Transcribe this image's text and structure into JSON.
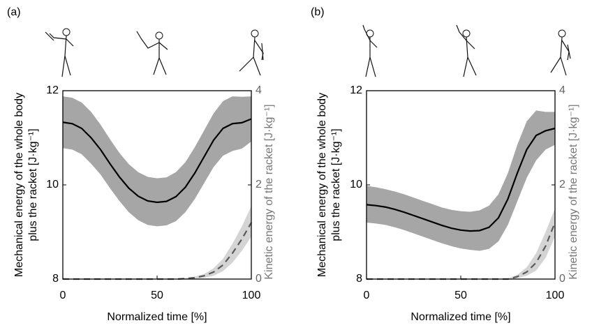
{
  "chart_data": [
    {
      "type": "line",
      "panel_label": "(a)",
      "xlabel": "Normalized time [%]",
      "ylabel": [
        "Mechanical energy of the whole body",
        "plus the racket [J·kg⁻¹]"
      ],
      "y2label": "Kinetic energy of the racket [J·kg⁻¹]",
      "x": [
        0,
        5,
        10,
        15,
        20,
        25,
        30,
        35,
        40,
        45,
        50,
        55,
        60,
        65,
        70,
        75,
        80,
        85,
        90,
        95,
        100
      ],
      "xlim": [
        0,
        100
      ],
      "xticks": [
        0,
        50,
        100
      ],
      "ylim": [
        8,
        12
      ],
      "yticks": [
        8,
        10,
        12
      ],
      "y2lim": [
        0,
        4
      ],
      "y2ticks": [
        0,
        2,
        4
      ],
      "series": [
        {
          "color": "#000000",
          "band_color": "#a6a6a6",
          "line_style": "solid",
          "values": [
            11.33,
            11.3,
            11.2,
            11.0,
            10.75,
            10.45,
            10.17,
            9.93,
            9.76,
            9.66,
            9.63,
            9.65,
            9.75,
            9.95,
            10.25,
            10.6,
            10.95,
            11.2,
            11.3,
            11.32,
            11.4
          ],
          "upper": [
            11.88,
            11.85,
            11.75,
            11.55,
            11.28,
            10.97,
            10.68,
            10.44,
            10.27,
            10.17,
            10.14,
            10.16,
            10.27,
            10.48,
            10.8,
            11.16,
            11.52,
            11.78,
            11.88,
            11.87,
            11.88
          ],
          "lower": [
            10.78,
            10.75,
            10.65,
            10.45,
            10.22,
            9.93,
            9.66,
            9.42,
            9.25,
            9.15,
            9.12,
            9.14,
            9.23,
            9.42,
            9.7,
            10.04,
            10.38,
            10.62,
            10.72,
            10.77,
            10.92
          ]
        },
        {
          "color": "#5a5a5a",
          "band_color": "#d4d4d4",
          "line_style": "dashed",
          "axis": "y2",
          "values": [
            0,
            0,
            0,
            0,
            0,
            0,
            0,
            0,
            0,
            0,
            0,
            0,
            0,
            0.01,
            0.03,
            0.07,
            0.15,
            0.3,
            0.55,
            0.85,
            1.2
          ],
          "upper": [
            0,
            0,
            0,
            0,
            0,
            0,
            0,
            0,
            0,
            0,
            0,
            0,
            0,
            0.02,
            0.05,
            0.11,
            0.23,
            0.43,
            0.75,
            1.12,
            1.55
          ],
          "lower": [
            0,
            0,
            0,
            0,
            0,
            0,
            0,
            0,
            0,
            0,
            0,
            0,
            0,
            0,
            0.01,
            0.03,
            0.07,
            0.17,
            0.35,
            0.6,
            0.9
          ]
        }
      ]
    },
    {
      "type": "line",
      "panel_label": "(b)",
      "xlabel": "Normalized time [%]",
      "ylabel": [
        "Mechanical energy of the whole body",
        "plus the racket [J·kg⁻¹]"
      ],
      "y2label": "Kinetic energy of the racket [J·kg⁻¹]",
      "x": [
        0,
        5,
        10,
        15,
        20,
        25,
        30,
        35,
        40,
        45,
        50,
        55,
        60,
        65,
        70,
        75,
        80,
        85,
        90,
        95,
        100
      ],
      "xlim": [
        0,
        100
      ],
      "xticks": [
        0,
        50,
        100
      ],
      "ylim": [
        8,
        12
      ],
      "yticks": [
        8,
        10,
        12
      ],
      "y2lim": [
        0,
        4
      ],
      "y2ticks": [
        0,
        2,
        4
      ],
      "series": [
        {
          "color": "#000000",
          "band_color": "#a6a6a6",
          "line_style": "solid",
          "values": [
            9.58,
            9.56,
            9.53,
            9.48,
            9.42,
            9.35,
            9.28,
            9.21,
            9.14,
            9.08,
            9.04,
            9.02,
            9.03,
            9.1,
            9.3,
            9.7,
            10.25,
            10.75,
            11.05,
            11.15,
            11.2
          ],
          "upper": [
            9.98,
            9.95,
            9.91,
            9.86,
            9.8,
            9.73,
            9.66,
            9.59,
            9.52,
            9.47,
            9.44,
            9.43,
            9.46,
            9.56,
            9.8,
            10.25,
            10.85,
            11.35,
            11.58,
            11.55,
            11.55
          ],
          "lower": [
            9.2,
            9.18,
            9.15,
            9.1,
            9.04,
            8.97,
            8.9,
            8.83,
            8.76,
            8.7,
            8.65,
            8.62,
            8.6,
            8.64,
            8.8,
            9.15,
            9.65,
            10.15,
            10.52,
            10.75,
            10.85
          ]
        },
        {
          "color": "#5a5a5a",
          "band_color": "#d4d4d4",
          "line_style": "dashed",
          "axis": "y2",
          "values": [
            0,
            0,
            0,
            0,
            0,
            0,
            0,
            0,
            0,
            0,
            0,
            0,
            0,
            0,
            0,
            0,
            0.05,
            0.15,
            0.35,
            0.7,
            1.2
          ],
          "upper": [
            0,
            0,
            0,
            0,
            0,
            0,
            0,
            0,
            0,
            0,
            0,
            0,
            0,
            0,
            0,
            0.01,
            0.09,
            0.25,
            0.55,
            1.0,
            1.5
          ],
          "lower": [
            0,
            0,
            0,
            0,
            0,
            0,
            0,
            0,
            0,
            0,
            0,
            0,
            0,
            0,
            0,
            0,
            0.02,
            0.07,
            0.18,
            0.45,
            0.9
          ]
        }
      ]
    }
  ]
}
